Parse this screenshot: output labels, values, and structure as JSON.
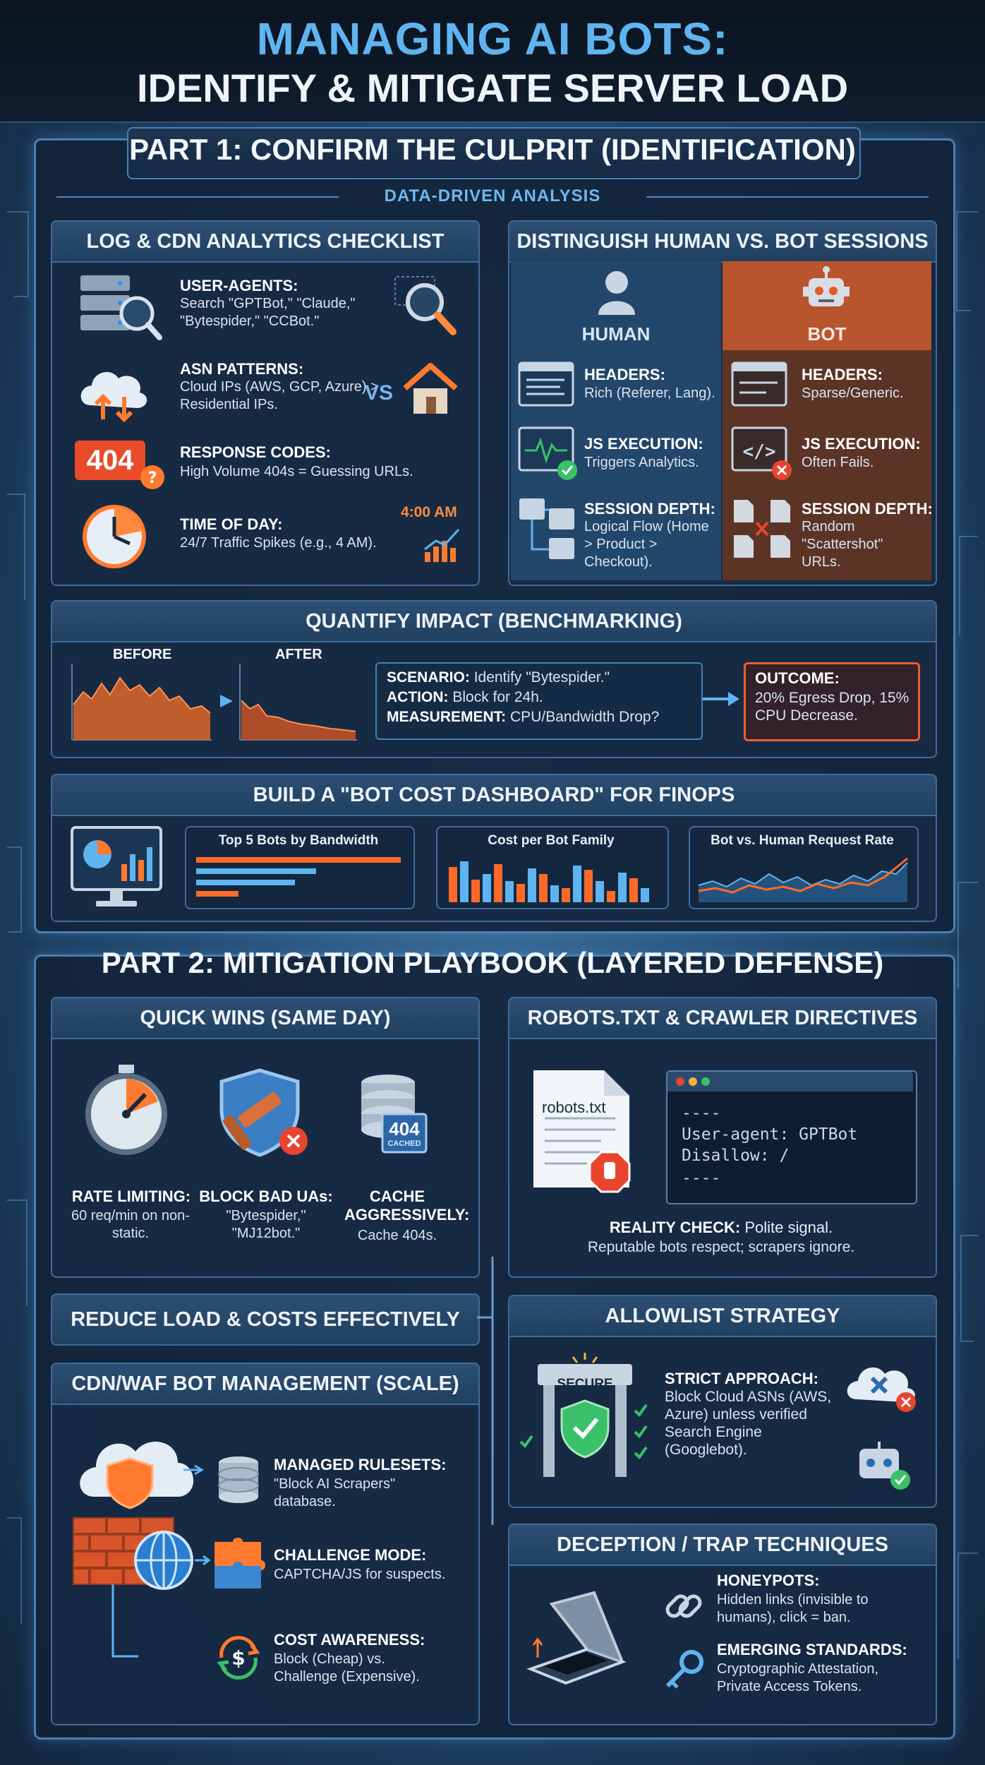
{
  "title": {
    "line1": "MANAGING AI BOTS:",
    "line2": "IDENTIFY & MITIGATE SERVER LOAD"
  },
  "part1": {
    "heading": "PART 1: CONFIRM THE CULPRIT (IDENTIFICATION)",
    "subheading": "DATA-DRIVEN ANALYSIS",
    "log_checklist": {
      "title": "LOG & CDN ANALYTICS CHECKLIST",
      "user_agents": {
        "label": "USER-AGENTS:",
        "text": "Search \"GPTBot,\" \"Claude,\" \"Bytespider,\" \"CCBot.\""
      },
      "asn": {
        "label": "ASN PATTERNS:",
        "text": "Cloud IPs (AWS, GCP, Azure) > Residential IPs.",
        "vs": "VS"
      },
      "response": {
        "label": "RESPONSE CODES:",
        "text": "High Volume 404s = Guessing URLs.",
        "badge": "404"
      },
      "time": {
        "label": "TIME OF DAY:",
        "text": "24/7 Traffic Spikes (e.g., 4 AM).",
        "clock": "4:00 AM"
      }
    },
    "human_bot": {
      "title": "DISTINGUISH HUMAN VS. BOT SESSIONS",
      "human_label": "HUMAN",
      "bot_label": "BOT",
      "human": {
        "headers": {
          "label": "HEADERS:",
          "text": "Rich (Referer, Lang)."
        },
        "js": {
          "label": "JS EXECUTION:",
          "text": "Triggers Analytics."
        },
        "depth": {
          "label": "SESSION DEPTH:",
          "text": "Logical Flow (Home > Product > Checkout)."
        }
      },
      "bot": {
        "headers": {
          "label": "HEADERS:",
          "text": "Sparse/Generic."
        },
        "js": {
          "label": "JS EXECUTION:",
          "text": "Often Fails."
        },
        "depth": {
          "label": "SESSION DEPTH:",
          "text": "Random \"Scattershot\" URLs."
        }
      }
    },
    "quantify": {
      "title": "QUANTIFY IMPACT (BENCHMARKING)",
      "before": "BEFORE",
      "after": "AFTER",
      "scenario_label": "SCENARIO:",
      "scenario": "Identify \"Bytespider.\"",
      "action_label": "ACTION:",
      "action": "Block for 24h.",
      "measure_label": "MEASUREMENT:",
      "measure": "CPU/Bandwidth Drop?",
      "outcome_label": "OUTCOME:",
      "outcome": "20% Egress Drop, 15% CPU Decrease."
    },
    "dashboard": {
      "title": "BUILD A \"BOT COST DASHBOARD\" FOR FINOPS",
      "widget1": "Top 5 Bots by Bandwidth",
      "widget2": "Cost per Bot Family",
      "widget3": "Bot vs. Human Request Rate"
    }
  },
  "part2": {
    "heading": "PART 2: MITIGATION PLAYBOOK (LAYERED DEFENSE)",
    "quick_wins": {
      "title": "QUICK WINS (SAME DAY)",
      "rate": {
        "label": "RATE LIMITING:",
        "text": "60 req/min on non-static."
      },
      "block": {
        "label": "BLOCK BAD UAs:",
        "text": "\"Bytespider,\" \"MJ12bot.\""
      },
      "cache": {
        "label": "CACHE AGGRESSIVELY:",
        "text": "Cache 404s."
      },
      "cache_badge": "404",
      "cache_badge_sub": "CACHED"
    },
    "robots": {
      "title": "ROBOTS.TXT & CRAWLER DIRECTIVES",
      "file_label": "robots.txt",
      "code_dash1": "----",
      "code_line1": "User-agent: GPTBot",
      "code_line2": "Disallow: /",
      "code_dash2": "----",
      "reality_label": "REALITY CHECK:",
      "reality": "Polite signal.",
      "reality2": "Reputable bots respect; scrapers ignore."
    },
    "reduce": {
      "title": "REDUCE LOAD & COSTS EFFECTIVELY"
    },
    "cdn_waf": {
      "title": "CDN/WAF BOT MANAGEMENT (SCALE)",
      "managed": {
        "label": "MANAGED RULESETS:",
        "text": "\"Block AI Scrapers\" database."
      },
      "challenge": {
        "label": "CHALLENGE MODE:",
        "text": "CAPTCHA/JS for suspects."
      },
      "cost": {
        "label": "COST AWARENESS:",
        "text": "Block (Cheap) vs. Challenge (Expensive)."
      }
    },
    "allowlist": {
      "title": "ALLOWLIST STRATEGY",
      "gate_label": "SECURE",
      "label": "STRICT APPROACH:",
      "text": "Block Cloud ASNs (AWS, Azure) unless verified Search Engine (Googlebot)."
    },
    "deception": {
      "title": "DECEPTION / TRAP TECHNIQUES",
      "honeypots": {
        "label": "HONEYPOTS:",
        "text": "Hidden links (invisible to humans), click = ban."
      },
      "emerging": {
        "label": "EMERGING STANDARDS:",
        "text": "Cryptographic Attestation, Private Access Tokens."
      }
    }
  },
  "colors": {
    "accent": "#5fb4f0",
    "orange": "#ff7a2e",
    "bot_panel": "#7a3d2a",
    "green": "#3bc06a",
    "red": "#e8442e"
  }
}
